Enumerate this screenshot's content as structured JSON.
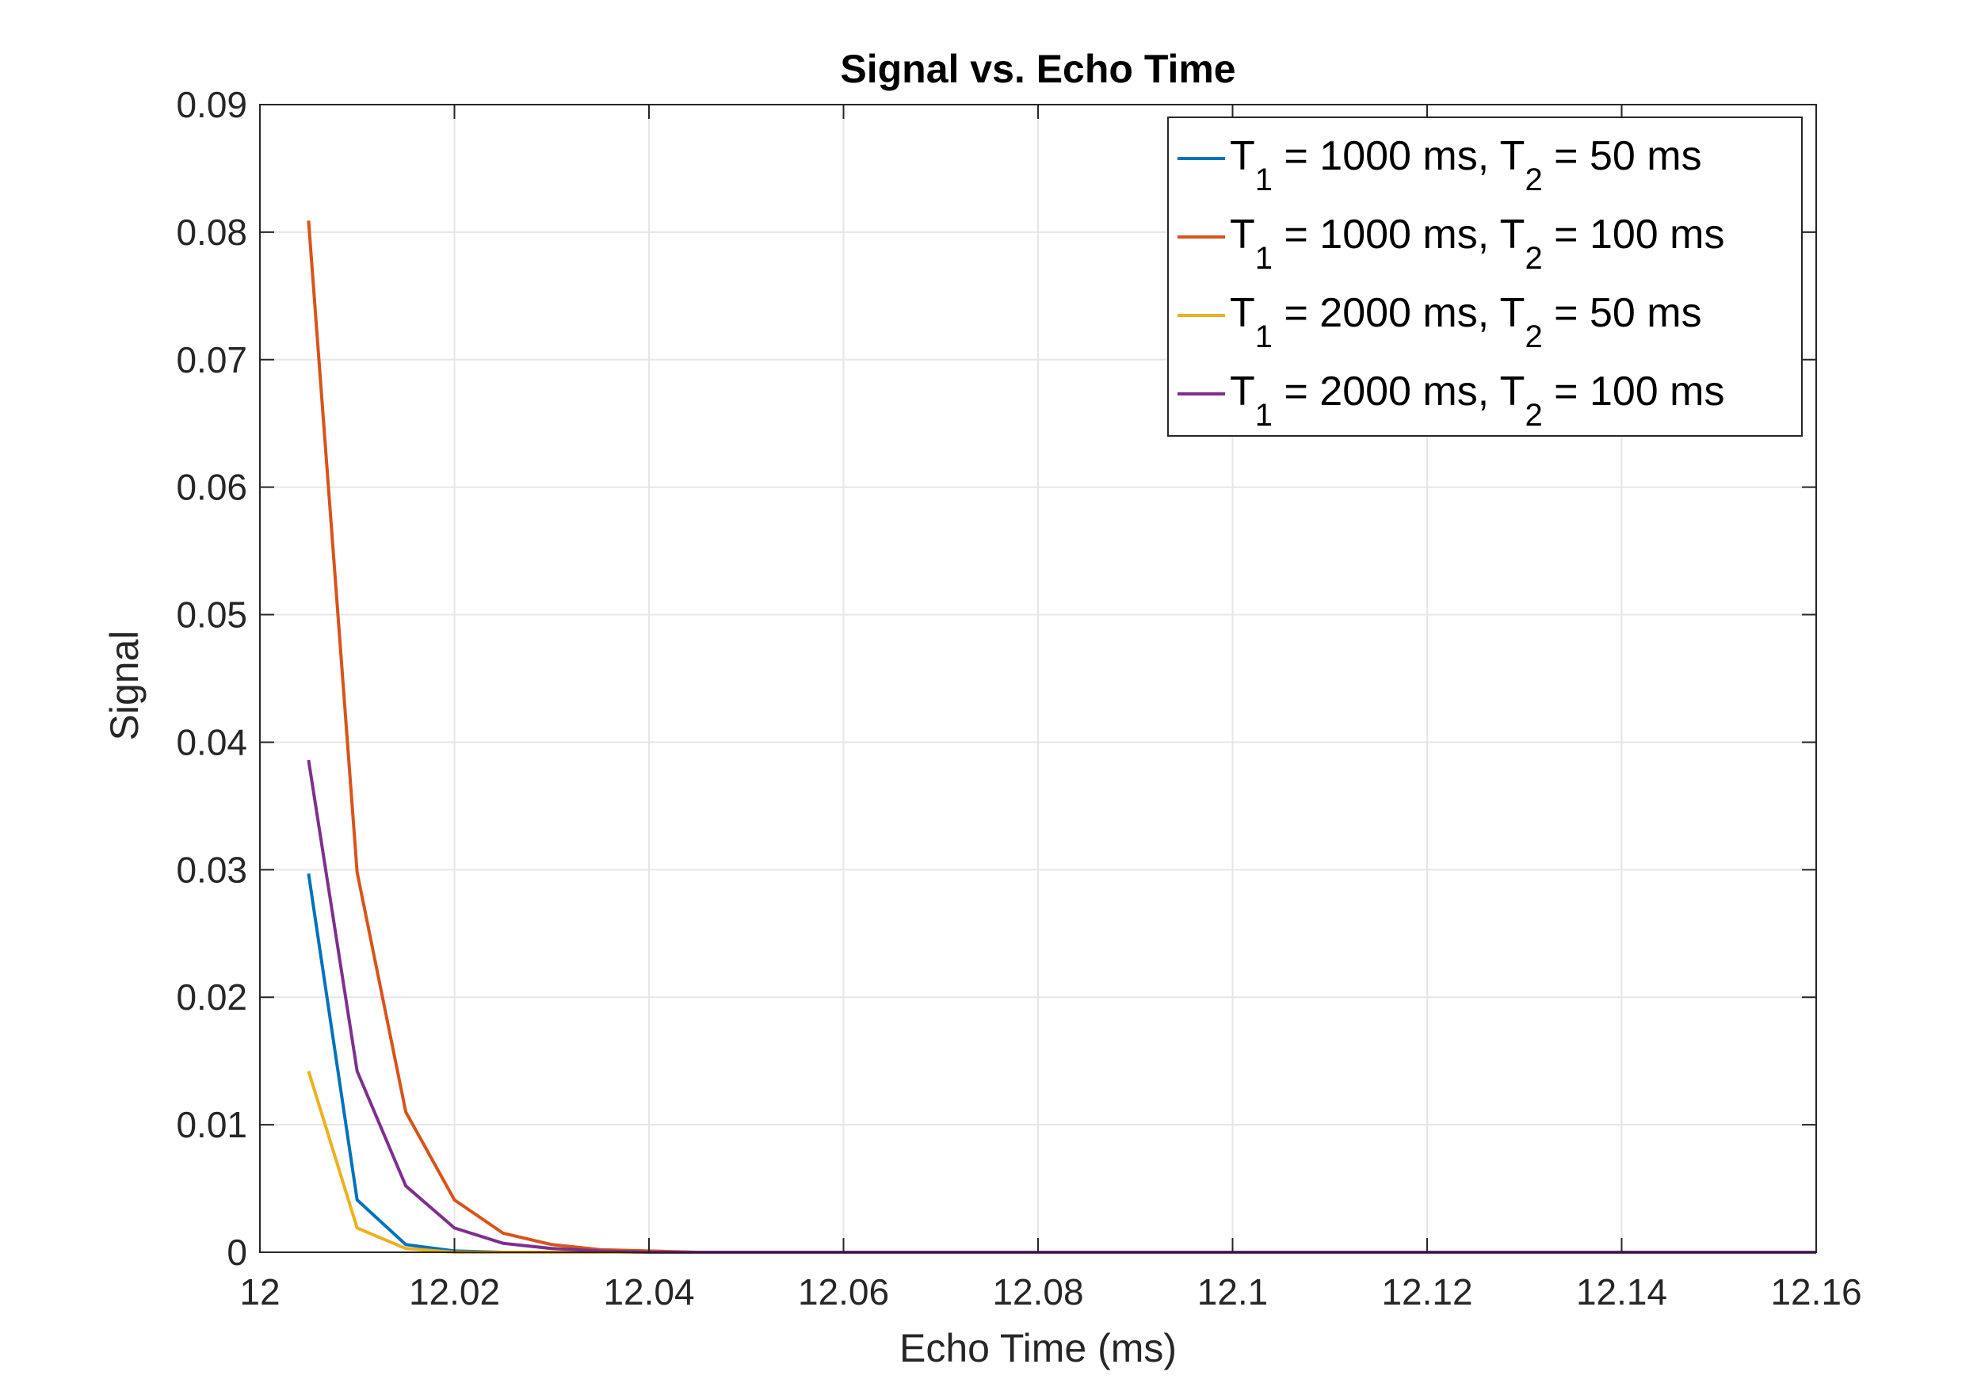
{
  "chart_data": {
    "type": "line",
    "title": "Signal vs. Echo Time",
    "xlabel": "Echo Time (ms)",
    "ylabel": "Signal",
    "xlim": [
      12,
      12.16
    ],
    "ylim": [
      0,
      0.09
    ],
    "xticks": [
      12,
      12.02,
      12.04,
      12.06,
      12.08,
      12.1,
      12.12,
      12.14,
      12.16
    ],
    "xtick_labels": [
      "12",
      "12.02",
      "12.04",
      "12.06",
      "12.08",
      "12.1",
      "12.12",
      "12.14",
      "12.16"
    ],
    "yticks": [
      0,
      0.01,
      0.02,
      0.03,
      0.04,
      0.05,
      0.06,
      0.07,
      0.08,
      0.09
    ],
    "ytick_labels": [
      "0",
      "0.01",
      "0.02",
      "0.03",
      "0.04",
      "0.05",
      "0.06",
      "0.07",
      "0.08",
      "0.09"
    ],
    "grid": true,
    "legend_position": "top-right",
    "x": [
      12.005,
      12.01,
      12.015,
      12.02,
      12.025,
      12.03,
      12.035,
      12.04,
      12.045,
      12.05,
      12.06,
      12.08,
      12.1,
      12.12,
      12.14,
      12.16
    ],
    "series": [
      {
        "name": "T1 = 1000 ms, T2 = 50 ms",
        "legend_parts": [
          "T",
          "1",
          " = 1000 ms, T",
          "2",
          " = 50 ms"
        ],
        "color": "#0072BD",
        "values": [
          0.0297,
          0.0041,
          0.0006,
          0.0001,
          0.0,
          0.0,
          0.0,
          0.0,
          0.0,
          0.0,
          0.0,
          0.0,
          0.0,
          0.0,
          0.0,
          0.0
        ]
      },
      {
        "name": "T1 = 1000 ms, T2 = 100 ms",
        "legend_parts": [
          "T",
          "1",
          " = 1000 ms, T",
          "2",
          " = 100 ms"
        ],
        "color": "#D95319",
        "values": [
          0.0809,
          0.0298,
          0.011,
          0.0041,
          0.0015,
          0.0006,
          0.0002,
          0.0001,
          0.0,
          0.0,
          0.0,
          0.0,
          0.0,
          0.0,
          0.0,
          0.0
        ]
      },
      {
        "name": "T1 = 2000 ms, T2 = 50 ms",
        "legend_parts": [
          "T",
          "1",
          " = 2000 ms, T",
          "2",
          " = 50 ms"
        ],
        "color": "#EDB120",
        "values": [
          0.0142,
          0.0019,
          0.0003,
          0.0,
          0.0,
          0.0,
          0.0,
          0.0,
          0.0,
          0.0,
          0.0,
          0.0,
          0.0,
          0.0,
          0.0,
          0.0
        ]
      },
      {
        "name": "T1 = 2000 ms, T2 = 100 ms",
        "legend_parts": [
          "T",
          "1",
          " = 2000 ms, T",
          "2",
          " = 100 ms"
        ],
        "color": "#7E2F8E",
        "values": [
          0.0386,
          0.0142,
          0.0052,
          0.0019,
          0.0007,
          0.0003,
          0.0001,
          0.0,
          0.0,
          0.0,
          0.0,
          0.0,
          0.0,
          0.0,
          0.0,
          0.0
        ]
      }
    ]
  }
}
